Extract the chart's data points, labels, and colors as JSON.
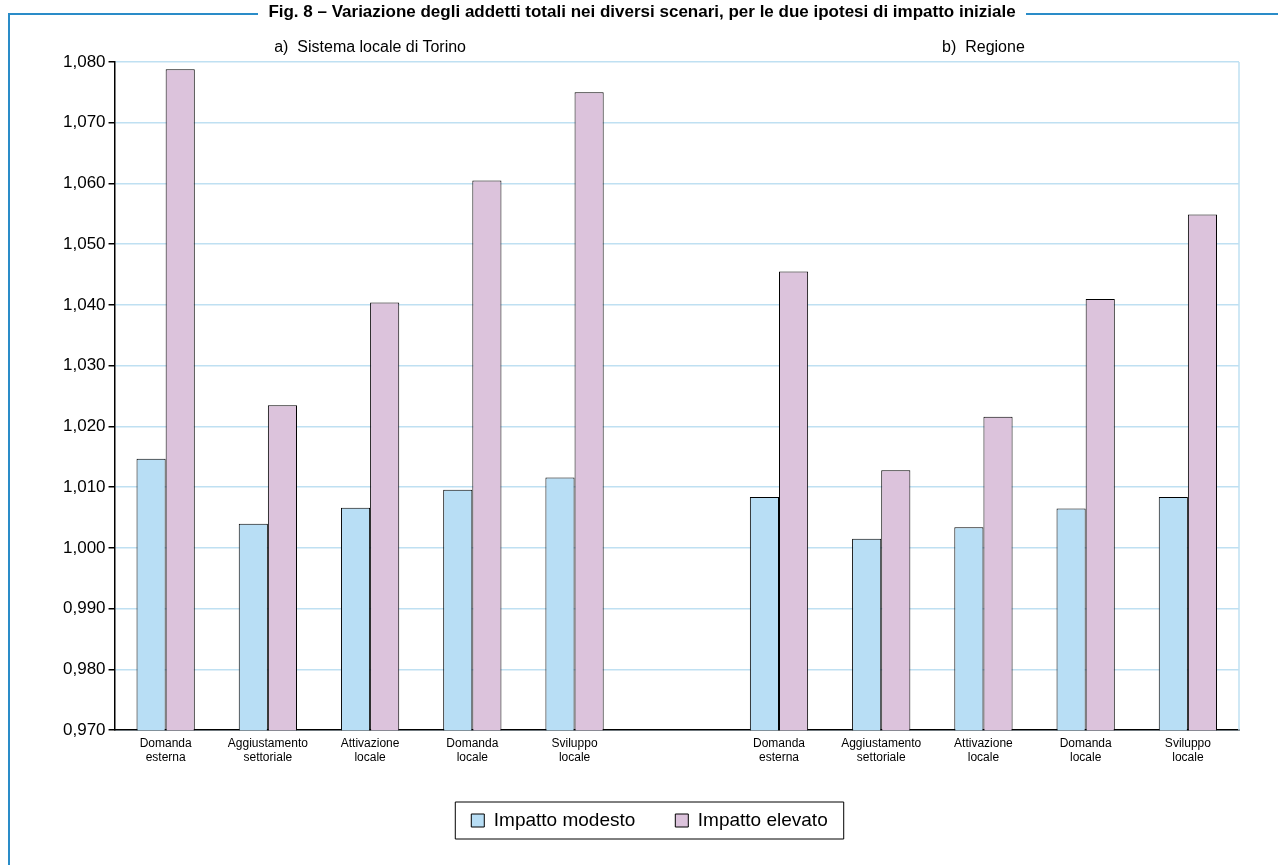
{
  "chart_data": {
    "type": "bar",
    "title": "Fig. 8 – Variazione degli addetti totali nei diversi scenari, per le due ipotesi di impatto iniziale",
    "annotations": [
      "a)  Sistema locale di Torino",
      "b)  Regione"
    ],
    "categories": [
      "Domanda esterna",
      "Aggiustamento settoriale",
      "Attivazione locale",
      "Domanda locale",
      "Sviluppo locale",
      null,
      "Domanda esterna",
      "Aggiustamento settoriale",
      "Attivazione locale",
      "Domanda locale",
      "Sviluppo locale"
    ],
    "series": [
      {
        "name": "Impatto modesto",
        "color": "#b8def5",
        "values": [
          1.0147,
          1.004,
          1.0066,
          1.0096,
          1.0116,
          null,
          1.0084,
          1.0015,
          1.0034,
          1.0065,
          1.0084
        ]
      },
      {
        "name": "Impatto elevato",
        "color": "#dcc3dc",
        "values": [
          1.0788,
          1.0235,
          1.0404,
          1.0605,
          1.075,
          null,
          1.0455,
          1.0128,
          1.0216,
          1.041,
          1.0549
        ]
      }
    ],
    "ylim": [
      0.97,
      1.08
    ],
    "yticks": [
      {
        "value": 0.97,
        "label": "0,970"
      },
      {
        "value": 0.98,
        "label": "0,980"
      },
      {
        "value": 0.99,
        "label": "0,990"
      },
      {
        "value": 1.0,
        "label": "1,000"
      },
      {
        "value": 1.01,
        "label": "1,010"
      },
      {
        "value": 1.02,
        "label": "1,020"
      },
      {
        "value": 1.03,
        "label": "1,030"
      },
      {
        "value": 1.04,
        "label": "1,040"
      },
      {
        "value": 1.05,
        "label": "1,050"
      },
      {
        "value": 1.06,
        "label": "1,060"
      },
      {
        "value": 1.07,
        "label": "1,070"
      },
      {
        "value": 1.08,
        "label": "1,080"
      }
    ],
    "grid": "y",
    "legend": "bottom"
  }
}
